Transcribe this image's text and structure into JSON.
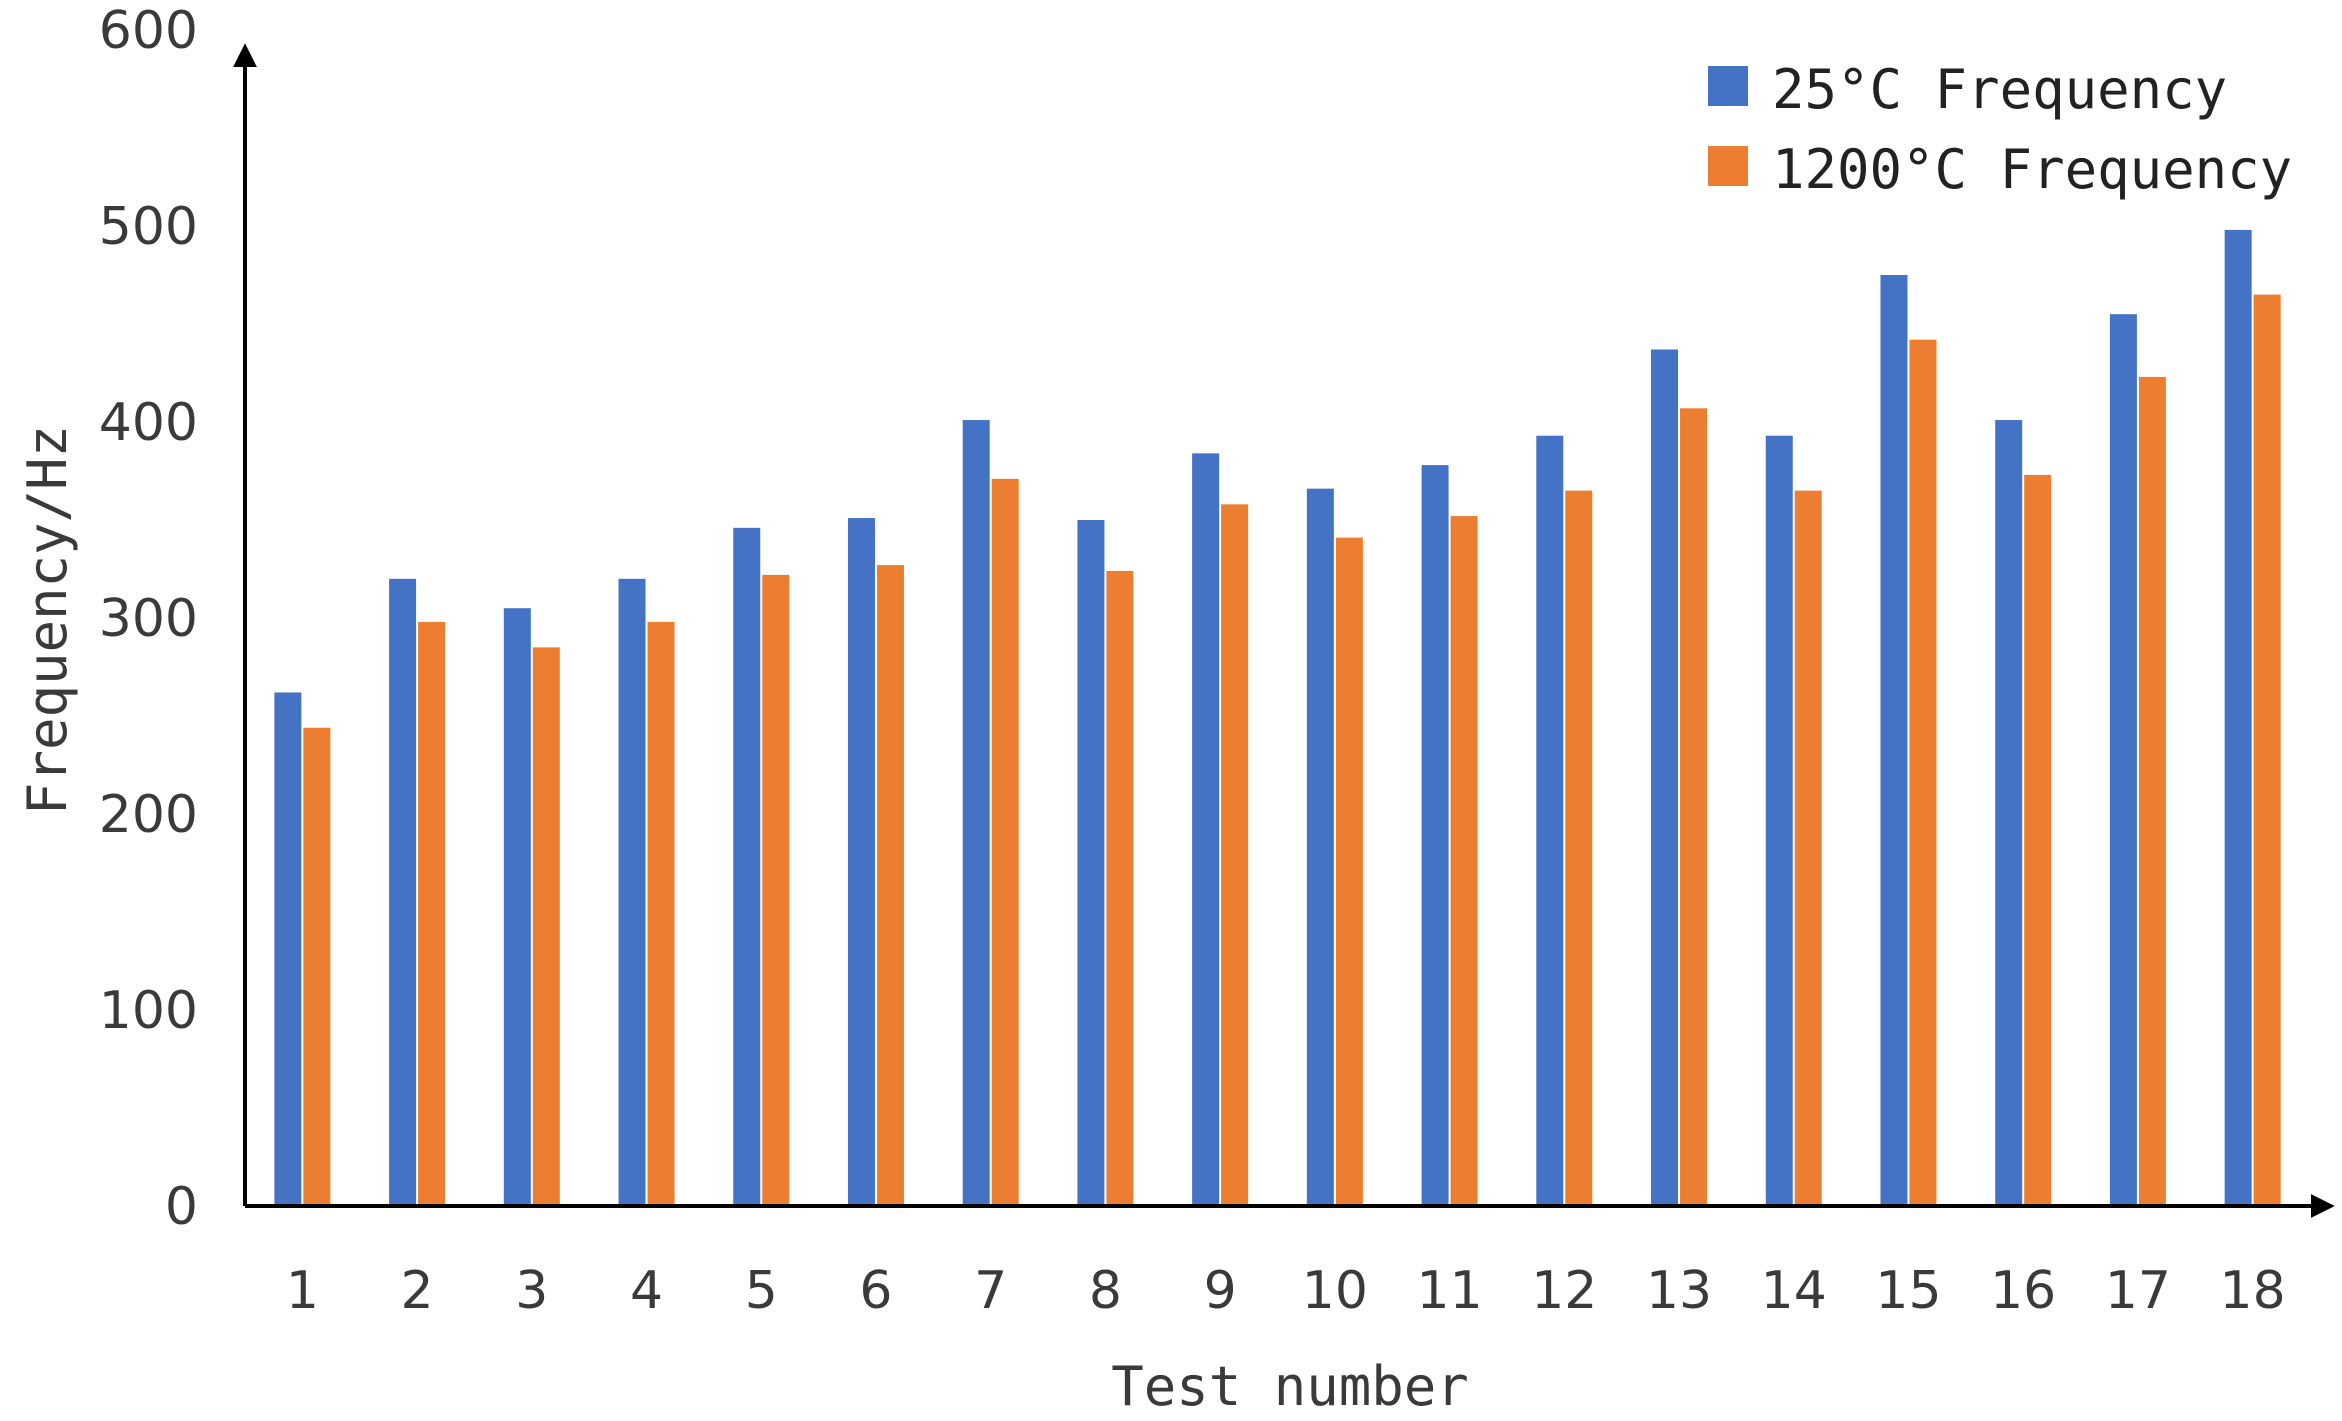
{
  "chart_data": {
    "type": "bar",
    "xlabel": "Test number",
    "ylabel": "Frequency/Hz",
    "ylim": [
      0,
      600
    ],
    "yticks": [
      0,
      100,
      200,
      300,
      400,
      500,
      600
    ],
    "grid": false,
    "legend_position": "top-right",
    "categories": [
      "1",
      "2",
      "3",
      "4",
      "5",
      "6",
      "7",
      "8",
      "9",
      "10",
      "11",
      "12",
      "13",
      "14",
      "15",
      "16",
      "17",
      "18"
    ],
    "series": [
      {
        "name": "25°C Frequency",
        "color": "#4472c4",
        "values": [
          262,
          320,
          305,
          320,
          346,
          351,
          401,
          350,
          384,
          366,
          378,
          393,
          437,
          393,
          475,
          401,
          455,
          498
        ]
      },
      {
        "name": "1200°C Frequency",
        "color": "#ed7d31",
        "values": [
          244,
          298,
          285,
          298,
          322,
          327,
          371,
          324,
          358,
          341,
          352,
          365,
          407,
          365,
          442,
          373,
          423,
          465
        ]
      }
    ]
  }
}
